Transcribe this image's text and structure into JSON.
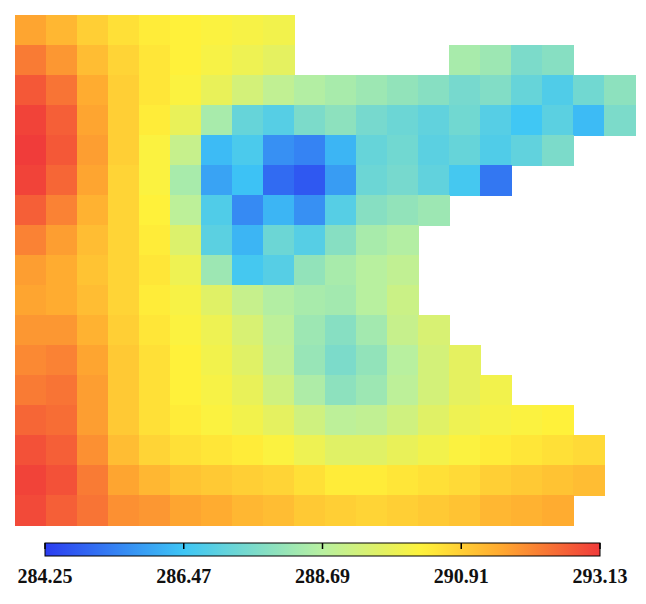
{
  "chart_data": {
    "type": "heatmap",
    "tick_labels": false,
    "cells": [
      [
        291.6,
        291.3,
        290.9,
        290.6,
        290.4,
        290.3,
        290.2,
        290.1,
        290.0,
        null,
        null,
        null,
        null,
        null,
        null,
        null,
        null,
        null,
        null,
        null
      ],
      [
        292.2,
        291.8,
        291.2,
        290.8,
        290.5,
        290.3,
        290.1,
        289.9,
        289.7,
        null,
        null,
        null,
        null,
        null,
        288.4,
        288.2,
        287.6,
        287.8,
        null,
        null
      ],
      [
        292.7,
        292.3,
        291.5,
        290.9,
        290.5,
        290.2,
        289.8,
        289.3,
        288.9,
        288.6,
        288.4,
        288.2,
        288.0,
        287.8,
        287.5,
        287.7,
        287.2,
        286.8,
        287.4,
        287.9
      ],
      [
        293.0,
        292.6,
        291.6,
        290.9,
        290.4,
        289.8,
        288.4,
        287.2,
        286.9,
        287.6,
        287.9,
        287.5,
        287.3,
        287.1,
        287.4,
        286.9,
        286.5,
        287.0,
        286.3,
        287.6
      ],
      [
        293.1,
        292.7,
        291.7,
        290.9,
        290.2,
        289.0,
        286.3,
        286.7,
        285.6,
        285.4,
        286.2,
        287.2,
        287.4,
        287.0,
        287.2,
        286.8,
        287.1,
        287.6,
        null,
        null
      ],
      [
        293.0,
        292.5,
        291.6,
        290.8,
        290.2,
        288.4,
        285.9,
        286.4,
        285.0,
        284.7,
        285.8,
        287.3,
        287.5,
        287.1,
        286.6,
        285.2,
        null,
        null,
        null,
        null
      ],
      [
        292.6,
        292.1,
        291.4,
        290.8,
        290.3,
        288.8,
        286.8,
        285.5,
        286.2,
        285.6,
        286.9,
        287.8,
        288.0,
        288.2,
        null,
        null,
        null,
        null,
        null,
        null
      ],
      [
        292.1,
        291.7,
        291.2,
        290.8,
        290.4,
        289.5,
        287.0,
        286.2,
        287.3,
        286.9,
        287.8,
        288.4,
        288.6,
        null,
        null,
        null,
        null,
        null,
        null,
        null
      ],
      [
        291.7,
        291.5,
        291.1,
        290.8,
        290.5,
        289.9,
        288.2,
        286.6,
        286.9,
        288.0,
        288.4,
        288.7,
        288.9,
        null,
        null,
        null,
        null,
        null,
        null,
        null
      ],
      [
        291.6,
        291.5,
        291.2,
        290.8,
        290.4,
        290.1,
        289.6,
        289.0,
        288.6,
        288.4,
        288.3,
        288.7,
        289.1,
        null,
        null,
        null,
        null,
        null,
        null,
        null
      ],
      [
        291.8,
        291.8,
        291.4,
        290.9,
        290.5,
        290.2,
        289.9,
        289.4,
        288.8,
        288.2,
        287.8,
        288.3,
        289.0,
        289.4,
        null,
        null,
        null,
        null,
        null,
        null
      ],
      [
        292.0,
        292.1,
        291.6,
        291.0,
        290.6,
        290.3,
        290.0,
        289.6,
        288.9,
        288.1,
        287.6,
        288.0,
        288.7,
        289.3,
        289.7,
        null,
        null,
        null,
        null,
        null
      ],
      [
        292.2,
        292.3,
        291.7,
        291.0,
        290.6,
        290.3,
        290.1,
        289.8,
        289.2,
        288.5,
        287.9,
        288.2,
        288.8,
        289.3,
        289.7,
        290.0,
        null,
        null,
        null,
        null
      ],
      [
        292.5,
        292.4,
        291.7,
        291.0,
        290.6,
        290.4,
        290.2,
        290.0,
        289.7,
        289.2,
        288.8,
        288.9,
        289.2,
        289.6,
        289.9,
        290.1,
        290.2,
        290.3,
        null,
        null
      ],
      [
        292.8,
        292.6,
        291.9,
        291.2,
        290.8,
        290.6,
        290.5,
        290.4,
        290.2,
        289.9,
        289.6,
        289.6,
        289.8,
        290.0,
        290.2,
        290.4,
        290.5,
        290.6,
        290.7,
        null
      ],
      [
        293.0,
        292.8,
        292.2,
        291.6,
        291.3,
        291.1,
        291.0,
        290.9,
        290.8,
        290.6,
        290.4,
        290.4,
        290.5,
        290.6,
        290.7,
        290.9,
        291.0,
        291.1,
        291.2,
        null
      ],
      [
        292.9,
        292.6,
        292.3,
        291.9,
        291.8,
        291.6,
        291.5,
        291.3,
        291.2,
        291.0,
        290.9,
        290.8,
        290.9,
        291.0,
        291.1,
        291.3,
        291.4,
        291.5,
        null,
        null
      ]
    ],
    "colorbar_range": [
      284.25,
      293.13
    ],
    "colorbar_ticks": [
      284.25,
      286.47,
      288.69,
      290.91,
      293.13
    ]
  }
}
